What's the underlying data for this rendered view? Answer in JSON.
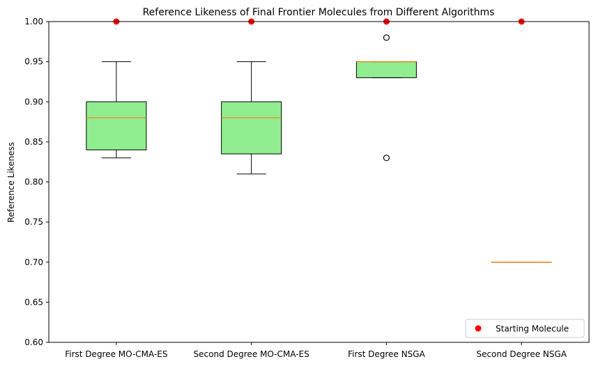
{
  "chart_data": {
    "type": "box",
    "title": "Reference Likeness of Final Frontier Molecules from Different Algorithms",
    "xlabel": "",
    "ylabel": "Reference Likeness",
    "ylim": [
      0.6,
      1.0
    ],
    "yticks": [
      "0.60",
      "0.65",
      "0.70",
      "0.75",
      "0.80",
      "0.85",
      "0.90",
      "0.95",
      "1.00"
    ],
    "categories": [
      "First Degree MO-CMA-ES",
      "Second Degree MO-CMA-ES",
      "First Degree NSGA",
      "Second Degree NSGA"
    ],
    "boxes": [
      {
        "q1": 0.84,
        "median": 0.88,
        "q3": 0.9,
        "whisker_low": 0.83,
        "whisker_high": 0.95,
        "outliers": []
      },
      {
        "q1": 0.835,
        "median": 0.88,
        "q3": 0.9,
        "whisker_low": 0.81,
        "whisker_high": 0.95,
        "outliers": []
      },
      {
        "q1": 0.93,
        "median": 0.95,
        "q3": 0.95,
        "whisker_low": 0.93,
        "whisker_high": 0.95,
        "outliers": [
          0.98,
          0.83
        ]
      },
      {
        "q1": 0.7,
        "median": 0.7,
        "q3": 0.7,
        "whisker_low": 0.7,
        "whisker_high": 0.7,
        "outliers": []
      }
    ],
    "starting_molecule": {
      "label": "Starting Molecule",
      "values": [
        1.0,
        1.0,
        1.0,
        1.0
      ]
    },
    "legend_position": "lower-right",
    "colors": {
      "box_fill": "#90ee90",
      "median": "#ff7f0e",
      "start_marker": "#ff0000",
      "edge": "#000000"
    }
  }
}
